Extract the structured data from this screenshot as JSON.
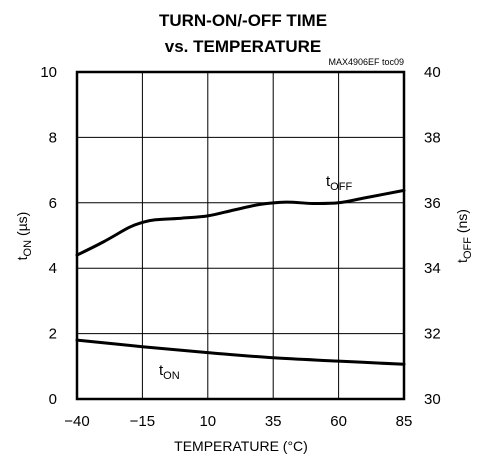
{
  "chart_data": {
    "type": "line",
    "title": [
      "TURN-ON/-OFF TIME",
      "vs. TEMPERATURE"
    ],
    "tag": "MAX4906EF toc09",
    "xlabel": "TEMPERATURE (°C)",
    "ylabel_left": {
      "main": "t",
      "sub": "ON",
      "unit": " (µs)"
    },
    "ylabel_right": {
      "main": "t",
      "sub": "OFF",
      "unit": " (ns)"
    },
    "xlim": [
      -40,
      85
    ],
    "ylim_left": [
      0,
      10
    ],
    "ylim_right": [
      30,
      40
    ],
    "x_ticks": [
      "-40",
      "-15",
      "10",
      "35",
      "60",
      "85"
    ],
    "y_left_ticks": [
      "0",
      "2",
      "4",
      "6",
      "8",
      "10"
    ],
    "y_right_ticks": [
      "30",
      "32",
      "34",
      "36",
      "38",
      "40"
    ],
    "grid": true,
    "series": [
      {
        "name_main": "t",
        "name_sub": "OFF",
        "axis": "right",
        "x": [
          -40,
          -30,
          -20,
          -15,
          -10,
          0,
          10,
          20,
          30,
          40,
          50,
          60,
          70,
          85
        ],
        "y": [
          34.4,
          34.8,
          35.25,
          35.4,
          35.48,
          35.53,
          35.6,
          35.78,
          35.95,
          36.02,
          35.98,
          36.0,
          36.15,
          36.38
        ]
      },
      {
        "name_main": "t",
        "name_sub": "ON",
        "axis": "left",
        "x": [
          -40,
          -15,
          10,
          35,
          60,
          85
        ],
        "y": [
          1.8,
          1.6,
          1.42,
          1.26,
          1.16,
          1.06
        ]
      }
    ]
  }
}
